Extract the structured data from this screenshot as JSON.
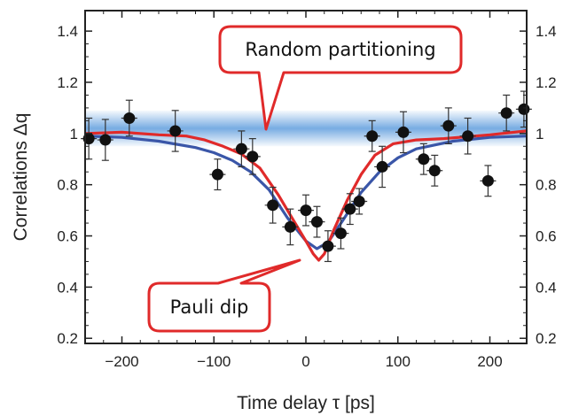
{
  "chart_data": {
    "type": "scatter",
    "title": "",
    "xlabel": "Time delay τ [ps]",
    "ylabel": "Correlations Δq",
    "xlim": [
      -240,
      240
    ],
    "ylim": [
      0.18,
      1.48
    ],
    "x_ticks": [
      -200,
      -100,
      0,
      100,
      200
    ],
    "x_tick_labels": [
      "−200",
      "−100",
      "0",
      "100",
      "200"
    ],
    "y_ticks": [
      0.2,
      0.4,
      0.6,
      0.8,
      1.0,
      1.2,
      1.4
    ],
    "y_tick_labels": [
      "0.2",
      "0.4",
      "0.6",
      "0.8",
      "1",
      "1.2",
      "1.4"
    ],
    "right_axis_labels": true,
    "band": {
      "y_center": 1.02,
      "half_width": 0.07,
      "color": "#4a90d9"
    },
    "points": [
      {
        "x": -236,
        "y": 0.98,
        "err": 0.08
      },
      {
        "x": -218,
        "y": 0.975,
        "err": 0.08
      },
      {
        "x": -192,
        "y": 1.06,
        "err": 0.07
      },
      {
        "x": -142,
        "y": 1.01,
        "err": 0.08
      },
      {
        "x": -96,
        "y": 0.84,
        "err": 0.06
      },
      {
        "x": -70,
        "y": 0.94,
        "err": 0.07
      },
      {
        "x": -58,
        "y": 0.91,
        "err": 0.07
      },
      {
        "x": -36,
        "y": 0.72,
        "err": 0.07
      },
      {
        "x": -17,
        "y": 0.635,
        "err": 0.07
      },
      {
        "x": 0,
        "y": 0.7,
        "err": 0.06
      },
      {
        "x": 12,
        "y": 0.655,
        "err": 0.06
      },
      {
        "x": 24,
        "y": 0.56,
        "err": 0.06
      },
      {
        "x": 38,
        "y": 0.61,
        "err": 0.06
      },
      {
        "x": 48,
        "y": 0.705,
        "err": 0.06
      },
      {
        "x": 58,
        "y": 0.735,
        "err": 0.05
      },
      {
        "x": 72,
        "y": 0.99,
        "err": 0.06
      },
      {
        "x": 83,
        "y": 0.87,
        "err": 0.08
      },
      {
        "x": 106,
        "y": 1.005,
        "err": 0.08
      },
      {
        "x": 128,
        "y": 0.9,
        "err": 0.06
      },
      {
        "x": 140,
        "y": 0.855,
        "err": 0.06
      },
      {
        "x": 155,
        "y": 1.03,
        "err": 0.07
      },
      {
        "x": 176,
        "y": 0.99,
        "err": 0.07
      },
      {
        "x": 198,
        "y": 0.815,
        "err": 0.06
      },
      {
        "x": 218,
        "y": 1.08,
        "err": 0.07
      },
      {
        "x": 237,
        "y": 1.095,
        "err": 0.07
      }
    ],
    "fits": [
      {
        "color": "#3a56a8",
        "points": [
          [
            -240,
            0.99
          ],
          [
            -200,
            0.985
          ],
          [
            -160,
            0.97
          ],
          [
            -120,
            0.945
          ],
          [
            -100,
            0.925
          ],
          [
            -80,
            0.895
          ],
          [
            -60,
            0.85
          ],
          [
            -40,
            0.78
          ],
          [
            -20,
            0.67
          ],
          [
            0,
            0.58
          ],
          [
            12,
            0.55
          ],
          [
            24,
            0.575
          ],
          [
            40,
            0.66
          ],
          [
            60,
            0.77
          ],
          [
            80,
            0.85
          ],
          [
            100,
            0.905
          ],
          [
            120,
            0.94
          ],
          [
            160,
            0.97
          ],
          [
            200,
            0.985
          ],
          [
            240,
            0.99
          ]
        ]
      },
      {
        "color": "#e02a2a",
        "points": [
          [
            -240,
            1.0
          ],
          [
            -200,
            1.005
          ],
          [
            -160,
            0.995
          ],
          [
            -130,
            0.99
          ],
          [
            -110,
            0.975
          ],
          [
            -90,
            0.95
          ],
          [
            -70,
            0.92
          ],
          [
            -50,
            0.865
          ],
          [
            -30,
            0.76
          ],
          [
            -15,
            0.67
          ],
          [
            0,
            0.58
          ],
          [
            8,
            0.53
          ],
          [
            14,
            0.505
          ],
          [
            20,
            0.53
          ],
          [
            30,
            0.62
          ],
          [
            45,
            0.74
          ],
          [
            60,
            0.84
          ],
          [
            75,
            0.915
          ],
          [
            95,
            0.96
          ],
          [
            120,
            0.975
          ],
          [
            150,
            0.98
          ],
          [
            200,
            0.995
          ],
          [
            240,
            1.01
          ]
        ]
      }
    ],
    "annotations": [
      {
        "text": "Random partitioning",
        "target": [
          -60,
          1.02
        ]
      },
      {
        "text": "Pauli dip",
        "target": [
          12,
          0.55
        ]
      }
    ]
  }
}
